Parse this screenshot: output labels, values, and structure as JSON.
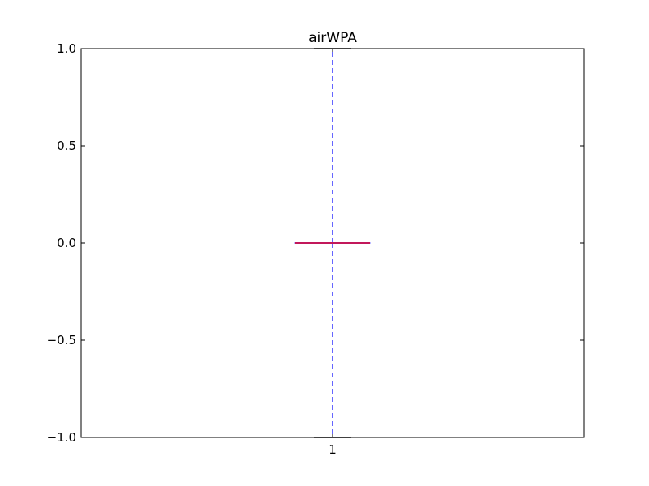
{
  "chart_data": {
    "type": "box",
    "title": "airWPA",
    "xlabel": "",
    "ylabel": "",
    "categories": [
      "1"
    ],
    "ylim": [
      -1.0,
      1.0
    ],
    "yticks": [
      1.0,
      0.5,
      0.0,
      -0.5,
      -1.0
    ],
    "ytick_labels": [
      "1.0",
      "0.5",
      "0.0",
      "−0.5",
      "−1.0"
    ],
    "boxes": [
      {
        "label": "1",
        "whisker_low": -1.0,
        "q1": 0.0,
        "median": 0.0,
        "q3": 0.0,
        "whisker_high": 1.0
      }
    ],
    "colors": {
      "whisker": "#0000ff",
      "median": "#c2185b",
      "box": "#000000",
      "cap": "#000000",
      "axes": "#000000"
    },
    "grid": false
  }
}
